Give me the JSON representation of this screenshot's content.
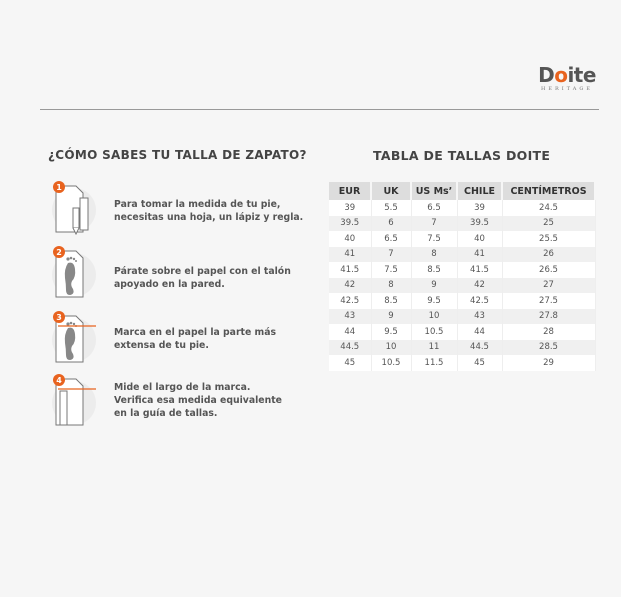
{
  "logo": {
    "brand": "Doite",
    "sub": "HERITAGE"
  },
  "left": {
    "title": "¿CÓMO SABES TU TALLA DE ZAPATO?",
    "steps": [
      {
        "number": "1",
        "icon": "paper-pencil-ruler-icon",
        "lines": [
          "Para tomar la medida de tu pie,",
          "necesitas una hoja, un lápiz y regla."
        ]
      },
      {
        "number": "2",
        "icon": "footprint-paper-icon",
        "lines": [
          "Párate sobre el papel con el talón",
          "apoyado en la pared."
        ]
      },
      {
        "number": "3",
        "icon": "footprint-mark-icon",
        "lines": [
          "Marca en el papel la parte más",
          "extensa de tu pie."
        ]
      },
      {
        "number": "4",
        "icon": "measure-mark-icon",
        "lines": [
          "Mide el largo de la marca.",
          "Verifica esa medida equivalente",
          "en la guía de tallas."
        ]
      }
    ]
  },
  "right": {
    "title": "TABLA DE TALLAS DOITE",
    "columns": [
      "EUR",
      "UK",
      "US Ms’",
      "CHILE",
      "CENTÍMETROS"
    ],
    "rows": [
      [
        "39",
        "5.5",
        "6.5",
        "39",
        "24.5"
      ],
      [
        "39.5",
        "6",
        "7",
        "39.5",
        "25"
      ],
      [
        "40",
        "6.5",
        "7.5",
        "40",
        "25.5"
      ],
      [
        "41",
        "7",
        "8",
        "41",
        "26"
      ],
      [
        "41.5",
        "7.5",
        "8.5",
        "41.5",
        "26.5"
      ],
      [
        "42",
        "8",
        "9",
        "42",
        "27"
      ],
      [
        "42.5",
        "8.5",
        "9.5",
        "42.5",
        "27.5"
      ],
      [
        "43",
        "9",
        "10",
        "43",
        "27.8"
      ],
      [
        "44",
        "9.5",
        "10.5",
        "44",
        "28"
      ],
      [
        "44.5",
        "10",
        "11",
        "44.5",
        "28.5"
      ],
      [
        "45",
        "10.5",
        "11.5",
        "45",
        "29"
      ]
    ]
  },
  "colors": {
    "accent": "#e8631f",
    "text": "#444444"
  }
}
